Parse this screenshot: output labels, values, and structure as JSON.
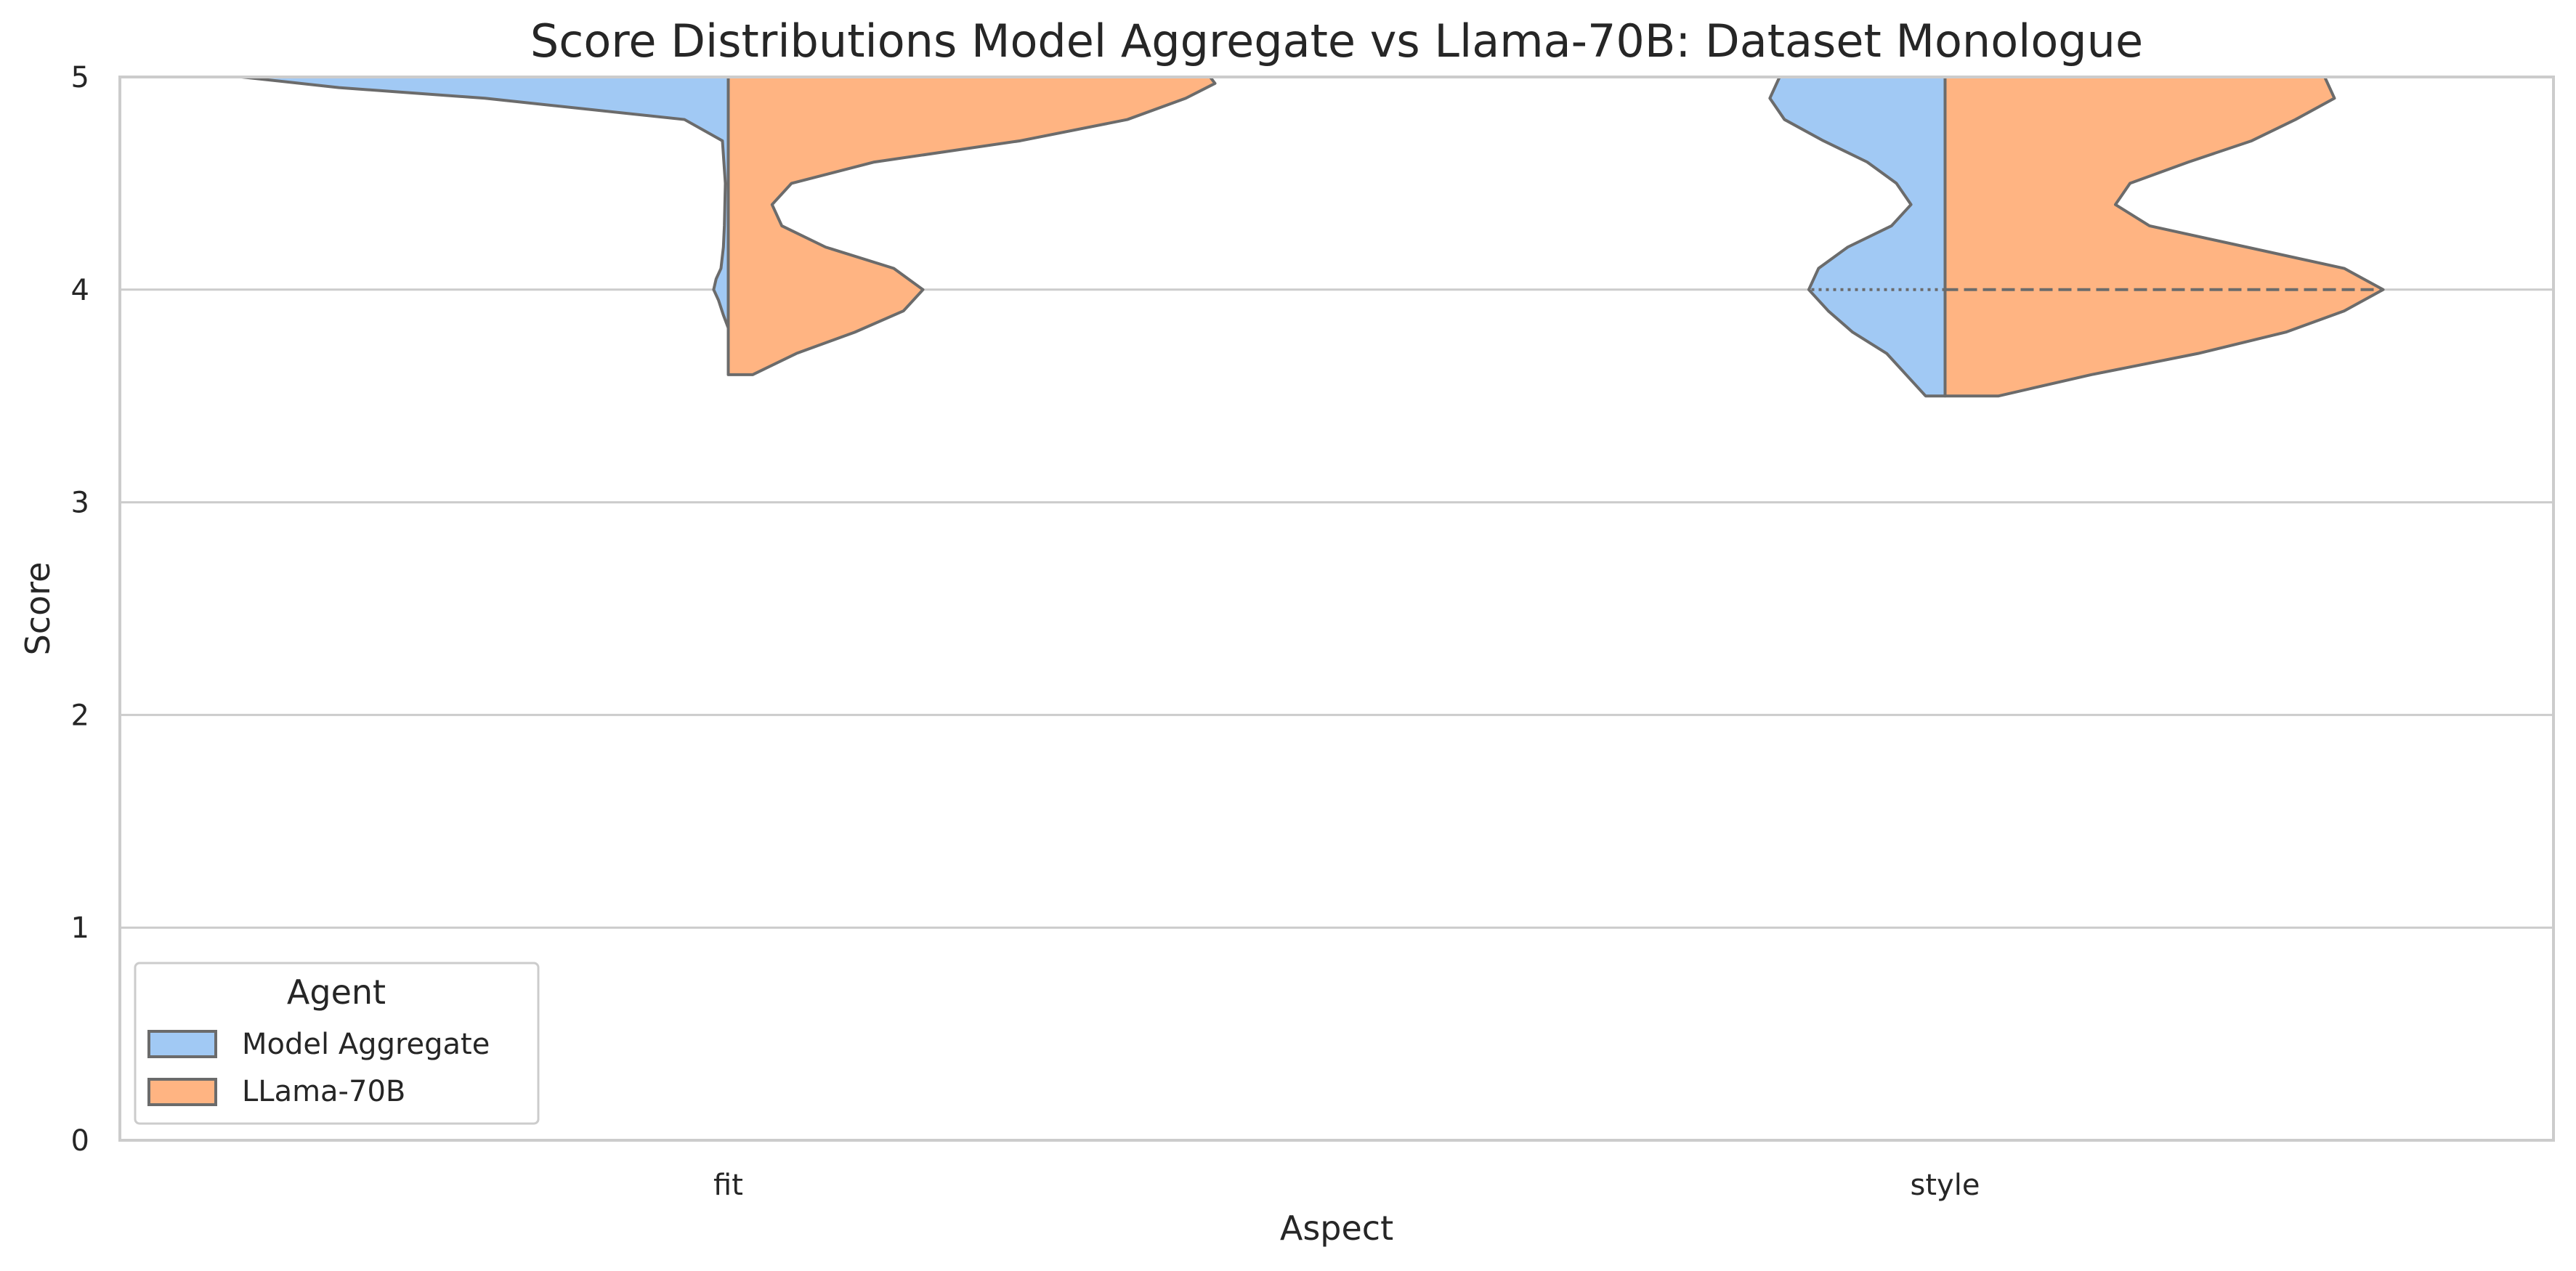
{
  "chart_data": {
    "type": "violin",
    "title": "Score Distributions Model Aggregate vs Llama-70B: Dataset Monologue",
    "xlabel": "Aspect",
    "ylabel": "Score",
    "categories": [
      "fit",
      "style"
    ],
    "ylim": [
      0,
      5
    ],
    "yticks": [
      0,
      1,
      2,
      3,
      4,
      5
    ],
    "grid": "horizontal",
    "legend": {
      "title": "Agent",
      "placement": "lower-left",
      "entries": [
        "Model Aggregate",
        "LLama-70B"
      ]
    },
    "colors": {
      "Model Aggregate": "#a1c9f4",
      "LLama-70B": "#ffb482",
      "outline": "#6b6b6b",
      "grid": "#cccccc",
      "frame": "#cccccc"
    },
    "series": [
      {
        "name": "Model Aggregate",
        "side": "left",
        "violins": [
          {
            "category": "fit",
            "ymin": 3.82,
            "ymax": 5.0,
            "density": [
              [
                3.82,
                0.0
              ],
              [
                3.88,
                0.01
              ],
              [
                3.95,
                0.02
              ],
              [
                4.0,
                0.03
              ],
              [
                4.05,
                0.025
              ],
              [
                4.1,
                0.015
              ],
              [
                4.2,
                0.01
              ],
              [
                4.3,
                0.008
              ],
              [
                4.5,
                0.006
              ],
              [
                4.7,
                0.012
              ],
              [
                4.8,
                0.09
              ],
              [
                4.9,
                0.5
              ],
              [
                4.95,
                0.8
              ],
              [
                5.0,
                1.0
              ]
            ]
          },
          {
            "category": "style",
            "ymin": 3.5,
            "ymax": 5.0,
            "density": [
              [
                3.5,
                0.04
              ],
              [
                3.6,
                0.08
              ],
              [
                3.7,
                0.12
              ],
              [
                3.8,
                0.19
              ],
              [
                3.9,
                0.24
              ],
              [
                4.0,
                0.28
              ],
              [
                4.1,
                0.26
              ],
              [
                4.2,
                0.2
              ],
              [
                4.3,
                0.11
              ],
              [
                4.4,
                0.07
              ],
              [
                4.5,
                0.1
              ],
              [
                4.6,
                0.16
              ],
              [
                4.7,
                0.25
              ],
              [
                4.8,
                0.33
              ],
              [
                4.9,
                0.36
              ],
              [
                5.0,
                0.34
              ]
            ]
          }
        ]
      },
      {
        "name": "LLama-70B",
        "side": "right",
        "violins": [
          {
            "category": "fit",
            "ymin": 3.6,
            "ymax": 5.0,
            "density": [
              [
                3.6,
                0.05
              ],
              [
                3.7,
                0.14
              ],
              [
                3.8,
                0.26
              ],
              [
                3.9,
                0.36
              ],
              [
                4.0,
                0.4
              ],
              [
                4.1,
                0.34
              ],
              [
                4.2,
                0.2
              ],
              [
                4.3,
                0.11
              ],
              [
                4.4,
                0.09
              ],
              [
                4.5,
                0.13
              ],
              [
                4.6,
                0.3
              ],
              [
                4.7,
                0.6
              ],
              [
                4.8,
                0.82
              ],
              [
                4.9,
                0.94
              ],
              [
                4.97,
                1.0
              ],
              [
                5.0,
                0.99
              ]
            ]
          },
          {
            "category": "style",
            "ymin": 3.5,
            "ymax": 5.0,
            "density": [
              [
                3.5,
                0.11
              ],
              [
                3.6,
                0.3
              ],
              [
                3.7,
                0.52
              ],
              [
                3.8,
                0.7
              ],
              [
                3.9,
                0.82
              ],
              [
                4.0,
                0.9
              ],
              [
                4.1,
                0.82
              ],
              [
                4.2,
                0.62
              ],
              [
                4.3,
                0.42
              ],
              [
                4.4,
                0.35
              ],
              [
                4.5,
                0.38
              ],
              [
                4.6,
                0.5
              ],
              [
                4.7,
                0.63
              ],
              [
                4.8,
                0.72
              ],
              [
                4.9,
                0.8
              ],
              [
                5.0,
                0.78
              ]
            ]
          }
        ]
      }
    ],
    "quartile_lines": [
      {
        "category": "style",
        "side": "left",
        "y": 4.0,
        "style": "dotted"
      },
      {
        "category": "style",
        "side": "right",
        "y": 4.0,
        "style": "dashed"
      }
    ]
  }
}
